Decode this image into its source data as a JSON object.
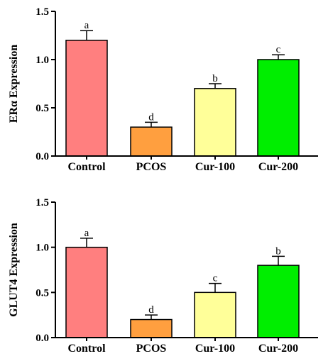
{
  "chart_data": [
    {
      "type": "bar",
      "ylabel": "ERα Expression",
      "ylim": [
        0,
        1.5
      ],
      "yticks": [
        "0.0",
        "0.5",
        "1.0",
        "1.5"
      ],
      "categories": [
        "Control",
        "PCOS",
        "Cur-100",
        "Cur-200"
      ],
      "values": [
        1.2,
        0.3,
        0.7,
        1.0
      ],
      "errors": [
        0.1,
        0.05,
        0.05,
        0.05
      ],
      "significance": [
        "a",
        "d",
        "b",
        "c"
      ],
      "colors": [
        "#ff7f7f",
        "#ff9f3f",
        "#ffff99",
        "#00ee00"
      ]
    },
    {
      "type": "bar",
      "ylabel": "GLUT4 Expression",
      "ylim": [
        0,
        1.5
      ],
      "yticks": [
        "0.0",
        "0.5",
        "1.0",
        "1.5"
      ],
      "categories": [
        "Control",
        "PCOS",
        "Cur-100",
        "Cur-200"
      ],
      "values": [
        1.0,
        0.2,
        0.5,
        0.8
      ],
      "errors": [
        0.1,
        0.05,
        0.1,
        0.1
      ],
      "significance": [
        "a",
        "d",
        "c",
        "b"
      ],
      "colors": [
        "#ff7f7f",
        "#ff9f3f",
        "#ffff99",
        "#00ee00"
      ]
    }
  ]
}
